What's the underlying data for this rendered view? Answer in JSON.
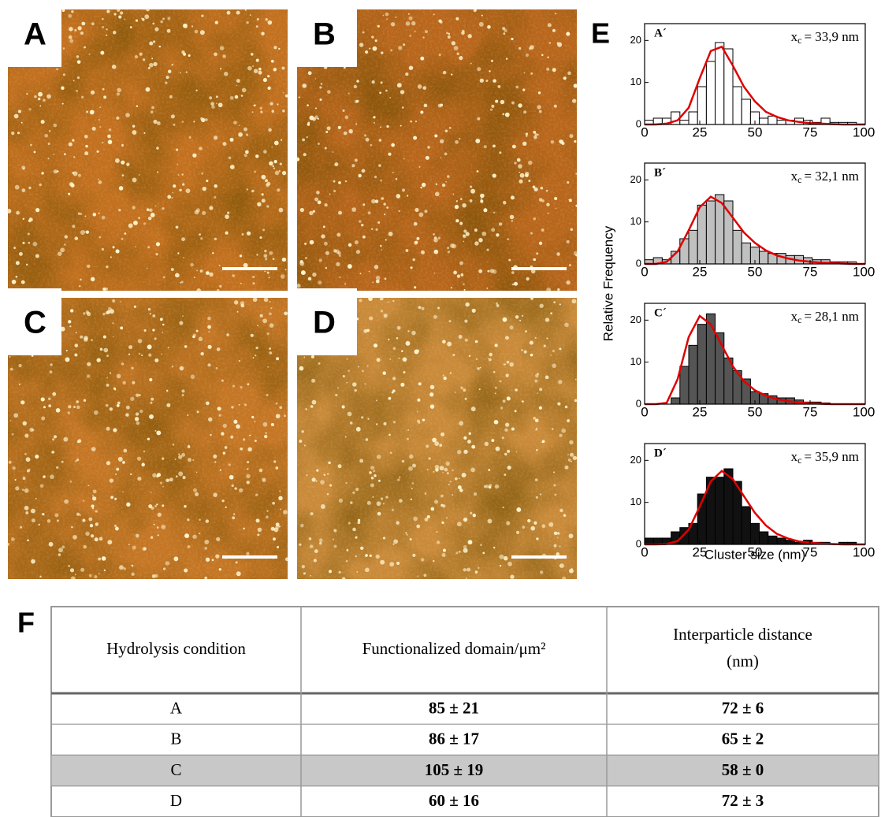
{
  "panels": [
    {
      "label": "A"
    },
    {
      "label": "B"
    },
    {
      "label": "C"
    },
    {
      "label": "D"
    }
  ],
  "panel_e_label": "E",
  "ylabel": "Relative Frequency",
  "xlabel": "Cluster size (nm)",
  "chart_data": [
    {
      "type": "histogram",
      "title": "A´",
      "annotation": {
        "symbol": "x",
        "subscript": "c",
        "text": "= 33,9 nm"
      },
      "color": "#ffffff",
      "bins": [
        0,
        4,
        8,
        12,
        16,
        20,
        24,
        28,
        32,
        36,
        40,
        44,
        48,
        52,
        56,
        60,
        64,
        68,
        72,
        76,
        80,
        84,
        88,
        92,
        96,
        100
      ],
      "counts": [
        1,
        1.5,
        1.5,
        3,
        1,
        3,
        9,
        15,
        19.5,
        18,
        9,
        6,
        3,
        1.5,
        2,
        1,
        1,
        1.5,
        1,
        0.5,
        1.5,
        0.5,
        0.5,
        0.5,
        0
      ],
      "fit": {
        "color": "#e00000",
        "x": [
          0,
          5,
          10,
          15,
          20,
          25,
          30,
          35,
          40,
          45,
          50,
          55,
          60,
          65,
          70,
          75,
          80,
          85,
          90,
          95,
          100
        ],
        "values": [
          0,
          0,
          0.2,
          1,
          4,
          11,
          17.5,
          18.5,
          14,
          9,
          5.5,
          3,
          1.8,
          1,
          0.6,
          0.3,
          0.2,
          0.1,
          0,
          0,
          0
        ]
      },
      "xlim": [
        0,
        100
      ],
      "xticks": [
        0,
        25,
        50,
        75,
        100
      ],
      "ylim": [
        0,
        24
      ],
      "yticks": [
        0,
        10,
        20
      ]
    },
    {
      "type": "histogram",
      "title": "B´",
      "annotation": {
        "symbol": "x",
        "subscript": "c",
        "text": "= 32,1 nm"
      },
      "color": "#c0c0c0",
      "bins": [
        0,
        4,
        8,
        12,
        16,
        20,
        24,
        28,
        32,
        36,
        40,
        44,
        48,
        52,
        56,
        60,
        64,
        68,
        72,
        76,
        80,
        84,
        88,
        92,
        96,
        100
      ],
      "counts": [
        1,
        1.5,
        1,
        3,
        6,
        8,
        14,
        15,
        16.5,
        15,
        8,
        5,
        4,
        3,
        2.5,
        2.5,
        2,
        2,
        1.5,
        1,
        1,
        0.5,
        0.5,
        0.5,
        0
      ],
      "fit": {
        "color": "#e00000",
        "x": [
          0,
          5,
          10,
          15,
          20,
          25,
          30,
          35,
          40,
          45,
          50,
          55,
          60,
          65,
          70,
          75,
          80,
          85,
          90,
          95,
          100
        ],
        "values": [
          0,
          0,
          0.5,
          3,
          8,
          13.5,
          16,
          14.5,
          11,
          7.5,
          5,
          3.2,
          2,
          1.3,
          0.8,
          0.5,
          0.3,
          0.2,
          0.1,
          0,
          0
        ]
      },
      "xlim": [
        0,
        100
      ],
      "xticks": [
        0,
        25,
        50,
        75,
        100
      ],
      "ylim": [
        0,
        24
      ],
      "yticks": [
        0,
        10,
        20
      ]
    },
    {
      "type": "histogram",
      "title": "C´",
      "annotation": {
        "symbol": "x",
        "subscript": "c",
        "text": "= 28,1 nm"
      },
      "color": "#555555",
      "bins": [
        0,
        4,
        8,
        12,
        16,
        20,
        24,
        28,
        32,
        36,
        40,
        44,
        48,
        52,
        56,
        60,
        64,
        68,
        72,
        76,
        80,
        84,
        88,
        92,
        96,
        100
      ],
      "counts": [
        0,
        0,
        0,
        1.5,
        9,
        14,
        19,
        21.5,
        17,
        11,
        8,
        6,
        3,
        2.5,
        2,
        1.5,
        1.5,
        1,
        0.5,
        0.5,
        0.3,
        0,
        0,
        0,
        0
      ],
      "fit": {
        "color": "#e00000",
        "x": [
          0,
          5,
          10,
          15,
          20,
          25,
          30,
          35,
          40,
          45,
          50,
          55,
          60,
          65,
          70,
          75,
          80,
          85,
          90,
          95,
          100
        ],
        "values": [
          0,
          0,
          0.3,
          6,
          16,
          21,
          19,
          14,
          9,
          5.5,
          3.3,
          2,
          1.2,
          0.7,
          0.4,
          0.2,
          0.1,
          0,
          0,
          0,
          0
        ]
      },
      "xlim": [
        0,
        100
      ],
      "xticks": [
        0,
        25,
        50,
        75,
        100
      ],
      "ylim": [
        0,
        24
      ],
      "yticks": [
        0,
        10,
        20
      ]
    },
    {
      "type": "histogram",
      "title": "D´",
      "annotation": {
        "symbol": "x",
        "subscript": "c",
        "text": "= 35,9 nm"
      },
      "color": "#111111",
      "bins": [
        0,
        4,
        8,
        12,
        16,
        20,
        24,
        28,
        32,
        36,
        40,
        44,
        48,
        52,
        56,
        60,
        64,
        68,
        72,
        76,
        80,
        84,
        88,
        92,
        96,
        100
      ],
      "counts": [
        1.5,
        1.5,
        1.5,
        3,
        4,
        5,
        12,
        16,
        16,
        18,
        15,
        9,
        5,
        3,
        2,
        1.5,
        1,
        0.5,
        1,
        0.5,
        0.5,
        0,
        0.5,
        0.5,
        0
      ],
      "fit": {
        "color": "#e00000",
        "x": [
          0,
          5,
          10,
          15,
          20,
          25,
          30,
          35,
          40,
          45,
          50,
          55,
          60,
          65,
          70,
          75,
          80,
          85,
          90,
          95,
          100
        ],
        "values": [
          0,
          0,
          0.1,
          0.8,
          3.5,
          9,
          15,
          17.5,
          15.5,
          11.5,
          7.5,
          4.5,
          2.5,
          1.4,
          0.7,
          0.4,
          0.2,
          0.1,
          0,
          0,
          0
        ]
      },
      "xlim": [
        0,
        100
      ],
      "xticks": [
        0,
        25,
        50,
        75,
        100
      ],
      "ylim": [
        0,
        24
      ],
      "yticks": [
        0,
        10,
        20
      ]
    }
  ],
  "panel_f_label": "F",
  "table": {
    "header": [
      "Hydrolysis condition",
      "Functionalized domain/μm²",
      "Interparticle distance (nm)"
    ],
    "rows": [
      [
        "A",
        "85 ± 21",
        "72 ± 6"
      ],
      [
        "B",
        "86 ± 17",
        "65 ± 2"
      ],
      [
        "C",
        "105 ± 19",
        "58 ± 0"
      ],
      [
        "D",
        "60 ± 16",
        "72 ± 3"
      ]
    ],
    "highlight_row": 2
  }
}
